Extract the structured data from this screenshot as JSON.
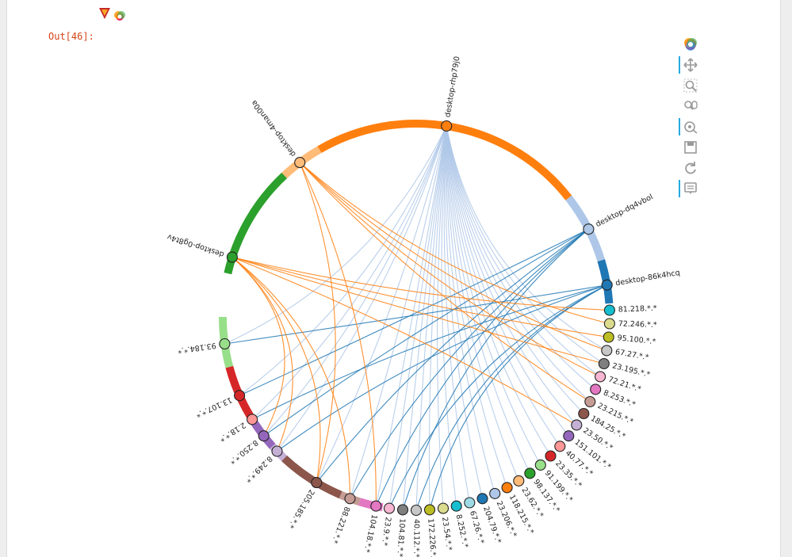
{
  "notebook": {
    "out_prompt": "Out[46]:"
  },
  "toolbar": {
    "tools": [
      {
        "name": "bokeh-logo-icon",
        "active": false
      },
      {
        "name": "pan-icon",
        "active": true
      },
      {
        "name": "box-zoom-icon",
        "active": false
      },
      {
        "name": "wheel-zoom-icon",
        "active": false
      },
      {
        "name": "tap-icon",
        "active": true
      },
      {
        "name": "save-icon",
        "active": false
      },
      {
        "name": "reset-icon",
        "active": false
      },
      {
        "name": "hover-icon",
        "active": true
      }
    ]
  },
  "chart_data": {
    "type": "chord",
    "nodes": [
      {
        "label": "desktop-rhp79j0",
        "color": "#ff7f0e",
        "group": "orange"
      },
      {
        "label": "desktop-dq4vbol",
        "color": "#aec7e8",
        "group": "lightblue"
      },
      {
        "label": "desktop-86k4hcq",
        "color": "#1f77b4",
        "group": "blue"
      },
      {
        "label": "81.218.*.*",
        "color": "#17becf",
        "group": "cyan"
      },
      {
        "label": "72.246.*.*",
        "color": "#dbdb8d",
        "group": "khaki"
      },
      {
        "label": "95.100.*.*",
        "color": "#bcbd22",
        "group": "olive"
      },
      {
        "label": "67.27.*.*",
        "color": "#c7c7c7",
        "group": "lightgray"
      },
      {
        "label": "23.195.*.*",
        "color": "#7f7f7f",
        "group": "gray"
      },
      {
        "label": "72.21.*.*",
        "color": "#f7b6d2",
        "group": "lightpink"
      },
      {
        "label": "8.253.*.*",
        "color": "#e377c2",
        "group": "pink"
      },
      {
        "label": "23.215.*.*",
        "color": "#c49c94",
        "group": "tan"
      },
      {
        "label": "184.25.*.*",
        "color": "#8c564b",
        "group": "brown"
      },
      {
        "label": "23.50.*.*",
        "color": "#c5b0d5",
        "group": "lavender"
      },
      {
        "label": "151.101.*.*",
        "color": "#9467bd",
        "group": "purple"
      },
      {
        "label": "40.77.*.*",
        "color": "#ff9896",
        "group": "salmon"
      },
      {
        "label": "23.35.*.*",
        "color": "#d62728",
        "group": "red"
      },
      {
        "label": "91.199.*.*",
        "color": "#98df8a",
        "group": "lightgreen"
      },
      {
        "label": "98.137.*.*",
        "color": "#2ca02c",
        "group": "green"
      },
      {
        "label": "23.62.*.*",
        "color": "#ffbb78",
        "group": "peach"
      },
      {
        "label": "118.215.*.*",
        "color": "#ff7f0e",
        "group": "orange"
      },
      {
        "label": "23.206.*.*",
        "color": "#aec7e8",
        "group": "lightblue"
      },
      {
        "label": "204.79.*.*",
        "color": "#1f77b4",
        "group": "blue"
      },
      {
        "label": "67.26.*.*",
        "color": "#9edae5",
        "group": "lightcyan"
      },
      {
        "label": "8.252.*.*",
        "color": "#17becf",
        "group": "cyan"
      },
      {
        "label": "23.54.*.*",
        "color": "#dbdb8d",
        "group": "khaki"
      },
      {
        "label": "172.226.*.*",
        "color": "#bcbd22",
        "group": "olive"
      },
      {
        "label": "40.112.*.*",
        "color": "#c7c7c7",
        "group": "lightgray"
      },
      {
        "label": "104.81.*.*",
        "color": "#7f7f7f",
        "group": "gray"
      },
      {
        "label": "23.9.*.*",
        "color": "#f7b6d2",
        "group": "lightpink"
      },
      {
        "label": "104.18.*.*",
        "color": "#e377c2",
        "group": "pink"
      },
      {
        "label": "88.221.*.*",
        "color": "#c49c94",
        "group": "tan"
      },
      {
        "label": "205.185.*.*",
        "color": "#8c564b",
        "group": "brown"
      },
      {
        "label": "8.249.*.*",
        "color": "#c5b0d5",
        "group": "lavender"
      },
      {
        "label": "8.250.*.*",
        "color": "#9467bd",
        "group": "purple"
      },
      {
        "label": "2.18.*.*",
        "color": "#ff9896",
        "group": "salmon"
      },
      {
        "label": "13.107.*.*",
        "color": "#d62728",
        "group": "red"
      },
      {
        "label": "93.184.*.*",
        "color": "#98df8a",
        "group": "lightgreen"
      },
      {
        "label": "desktop-0g8t4v",
        "color": "#2ca02c",
        "group": "green"
      },
      {
        "label": "desktop-4man00a",
        "color": "#ffbb78",
        "group": "peach"
      }
    ],
    "arcs": [
      {
        "node": "desktop-4man00a",
        "color": "#ffbb78"
      },
      {
        "node": "desktop-rhp79j0",
        "color": "#ff7f0e"
      },
      {
        "node": "desktop-dq4vbol",
        "color": "#aec7e8"
      },
      {
        "node": "desktop-86k4hcq",
        "color": "#1f77b4"
      },
      {
        "node": "desktop-0g8t4v",
        "color": "#2ca02c"
      },
      {
        "node": "93.184.*.*",
        "color": "#98df8a"
      },
      {
        "node": "13.107.*.*",
        "color": "#d62728"
      },
      {
        "node": "8.250.*.*",
        "color": "#9467bd"
      },
      {
        "node": "8.249.*.*",
        "color": "#c5b0d5"
      },
      {
        "node": "205.185.*.*",
        "color": "#8c564b"
      },
      {
        "node": "88.221.*.*",
        "color": "#c49c94"
      },
      {
        "node": "104.18.*.*",
        "color": "#e377c2"
      }
    ],
    "edge_colors": {
      "desktop-rhp79j0": "#aec7e8",
      "desktop-dq4vbol": "#1f77b4",
      "desktop-86k4hcq": "#1f77b4",
      "desktop-0g8t4v": "#ff7f0e",
      "desktop-4man00a": "#ff7f0e"
    },
    "edges": [
      {
        "source": "desktop-rhp79j0",
        "target": "23.54.*.*"
      },
      {
        "source": "desktop-rhp79j0",
        "target": "172.226.*.*"
      },
      {
        "source": "desktop-rhp79j0",
        "target": "40.112.*.*"
      },
      {
        "source": "desktop-rhp79j0",
        "target": "104.81.*.*"
      },
      {
        "source": "desktop-rhp79j0",
        "target": "23.9.*.*"
      },
      {
        "source": "desktop-rhp79j0",
        "target": "104.18.*.*"
      },
      {
        "source": "desktop-rhp79j0",
        "target": "88.221.*.*"
      },
      {
        "source": "desktop-rhp79j0",
        "target": "205.185.*.*"
      },
      {
        "source": "desktop-rhp79j0",
        "target": "8.252.*.*"
      },
      {
        "source": "desktop-rhp79j0",
        "target": "67.26.*.*"
      },
      {
        "source": "desktop-rhp79j0",
        "target": "204.79.*.*"
      },
      {
        "source": "desktop-rhp79j0",
        "target": "23.206.*.*"
      },
      {
        "source": "desktop-rhp79j0",
        "target": "118.215.*.*"
      },
      {
        "source": "desktop-rhp79j0",
        "target": "23.62.*.*"
      },
      {
        "source": "desktop-rhp79j0",
        "target": "98.137.*.*"
      },
      {
        "source": "desktop-rhp79j0",
        "target": "91.199.*.*"
      },
      {
        "source": "desktop-rhp79j0",
        "target": "23.35.*.*"
      },
      {
        "source": "desktop-rhp79j0",
        "target": "40.77.*.*"
      },
      {
        "source": "desktop-rhp79j0",
        "target": "151.101.*.*"
      },
      {
        "source": "desktop-rhp79j0",
        "target": "23.50.*.*"
      },
      {
        "source": "desktop-rhp79j0",
        "target": "184.25.*.*"
      },
      {
        "source": "desktop-rhp79j0",
        "target": "23.215.*.*"
      },
      {
        "source": "desktop-rhp79j0",
        "target": "8.253.*.*"
      },
      {
        "source": "desktop-rhp79j0",
        "target": "72.21.*.*"
      },
      {
        "source": "desktop-rhp79j0",
        "target": "23.195.*.*"
      },
      {
        "source": "desktop-rhp79j0",
        "target": "67.27.*.*"
      },
      {
        "source": "desktop-rhp79j0",
        "target": "8.250.*.*"
      },
      {
        "source": "desktop-rhp79j0",
        "target": "8.249.*.*"
      },
      {
        "source": "desktop-rhp79j0",
        "target": "2.18.*.*"
      },
      {
        "source": "desktop-rhp79j0",
        "target": "13.107.*.*"
      },
      {
        "source": "desktop-rhp79j0",
        "target": "93.184.*.*"
      },
      {
        "source": "desktop-dq4vbol",
        "target": "13.107.*.*"
      },
      {
        "source": "desktop-dq4vbol",
        "target": "8.250.*.*"
      },
      {
        "source": "desktop-dq4vbol",
        "target": "205.185.*.*"
      },
      {
        "source": "desktop-dq4vbol",
        "target": "88.221.*.*"
      },
      {
        "source": "desktop-dq4vbol",
        "target": "104.18.*.*"
      },
      {
        "source": "desktop-dq4vbol",
        "target": "104.81.*.*"
      },
      {
        "source": "desktop-86k4hcq",
        "target": "93.184.*.*"
      },
      {
        "source": "desktop-86k4hcq",
        "target": "2.18.*.*"
      },
      {
        "source": "desktop-86k4hcq",
        "target": "8.249.*.*"
      },
      {
        "source": "desktop-86k4hcq",
        "target": "23.9.*.*"
      },
      {
        "source": "desktop-86k4hcq",
        "target": "40.112.*.*"
      },
      {
        "source": "desktop-86k4hcq",
        "target": "172.226.*.*"
      },
      {
        "source": "desktop-0g8t4v",
        "target": "81.218.*.*"
      },
      {
        "source": "desktop-0g8t4v",
        "target": "95.100.*.*"
      },
      {
        "source": "desktop-0g8t4v",
        "target": "23.195.*.*"
      },
      {
        "source": "desktop-0g8t4v",
        "target": "23.50.*.*"
      },
      {
        "source": "desktop-0g8t4v",
        "target": "88.221.*.*"
      },
      {
        "source": "desktop-0g8t4v",
        "target": "205.185.*.*"
      },
      {
        "source": "desktop-0g8t4v",
        "target": "8.249.*.*"
      },
      {
        "source": "desktop-0g8t4v",
        "target": "8.250.*.*"
      },
      {
        "source": "desktop-4man00a",
        "target": "72.246.*.*"
      },
      {
        "source": "desktop-4man00a",
        "target": "67.27.*.*"
      },
      {
        "source": "desktop-4man00a",
        "target": "72.21.*.*"
      },
      {
        "source": "desktop-4man00a",
        "target": "23.215.*.*"
      },
      {
        "source": "desktop-4man00a",
        "target": "104.18.*.*"
      },
      {
        "source": "desktop-4man00a",
        "target": "205.185.*.*"
      }
    ]
  }
}
